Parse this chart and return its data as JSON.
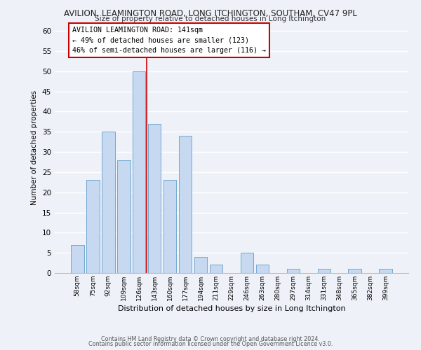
{
  "title": "AVILION, LEAMINGTON ROAD, LONG ITCHINGTON, SOUTHAM, CV47 9PL",
  "subtitle": "Size of property relative to detached houses in Long Itchington",
  "xlabel": "Distribution of detached houses by size in Long Itchington",
  "ylabel": "Number of detached properties",
  "bar_labels": [
    "58sqm",
    "75sqm",
    "92sqm",
    "109sqm",
    "126sqm",
    "143sqm",
    "160sqm",
    "177sqm",
    "194sqm",
    "211sqm",
    "229sqm",
    "246sqm",
    "263sqm",
    "280sqm",
    "297sqm",
    "314sqm",
    "331sqm",
    "348sqm",
    "365sqm",
    "382sqm",
    "399sqm"
  ],
  "bar_values": [
    7,
    23,
    35,
    28,
    50,
    37,
    23,
    34,
    4,
    2,
    0,
    5,
    2,
    0,
    1,
    0,
    1,
    0,
    1,
    0,
    1
  ],
  "bar_color": "#c6d9f0",
  "bar_edge_color": "#6fa8d0",
  "vline_color": "#cc0000",
  "annotation_title": "AVILION LEAMINGTON ROAD: 141sqm",
  "annotation_line1": "← 49% of detached houses are smaller (123)",
  "annotation_line2": "46% of semi-detached houses are larger (116) →",
  "annotation_box_color": "#ffffff",
  "annotation_box_edge": "#cc0000",
  "ylim": [
    0,
    62
  ],
  "yticks": [
    0,
    5,
    10,
    15,
    20,
    25,
    30,
    35,
    40,
    45,
    50,
    55,
    60
  ],
  "footer1": "Contains HM Land Registry data © Crown copyright and database right 2024.",
  "footer2": "Contains public sector information licensed under the Open Government Licence v3.0.",
  "bg_color": "#eef2f8",
  "grid_color": "#ffffff"
}
